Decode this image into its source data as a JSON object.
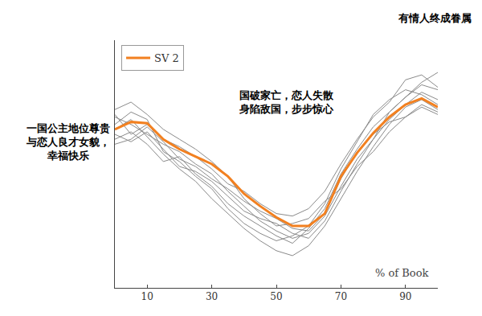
{
  "chart_data": {
    "type": "line",
    "x_label": "% of Book",
    "annotations": {
      "start": [
        "一国公主地位尊贵",
        "与恋人良才女貌，",
        "幸福快乐"
      ],
      "middle": [
        "国破家亡，恋人失散",
        "身陷敌国，步步惊心"
      ],
      "end": [
        "有情人终成眷属"
      ]
    },
    "x": [
      0,
      5,
      10,
      15,
      20,
      25,
      30,
      35,
      40,
      45,
      50,
      55,
      60,
      65,
      70,
      75,
      80,
      85,
      90,
      95,
      100
    ],
    "xlim": [
      0,
      100
    ],
    "xticks": [
      10,
      30,
      50,
      70,
      90
    ],
    "ylim": [
      0,
      10
    ],
    "tick_labels": "x",
    "grid": false,
    "legend": "upper left",
    "series": [
      {
        "color": "#8a8a8a",
        "values": [
          6.9,
          6.6,
          6.2,
          5.8,
          5.5,
          5.0,
          4.6,
          3.9,
          3.3,
          2.7,
          2.3,
          2.0,
          2.2,
          2.9,
          4.1,
          5.2,
          6.0,
          6.8,
          7.4,
          7.9,
          7.6
        ]
      },
      {
        "color": "#8a8a8a",
        "values": [
          6.0,
          6.3,
          5.8,
          5.1,
          5.3,
          4.6,
          4.1,
          3.4,
          2.9,
          2.5,
          2.1,
          1.8,
          2.4,
          3.2,
          4.6,
          5.6,
          6.5,
          7.1,
          7.7,
          8.2,
          8.0
        ]
      },
      {
        "color": "#8a8a8a",
        "values": [
          7.2,
          7.5,
          7.0,
          6.4,
          6.0,
          5.6,
          5.1,
          4.5,
          3.6,
          3.0,
          2.5,
          2.6,
          2.8,
          3.5,
          4.0,
          4.9,
          5.5,
          6.3,
          6.9,
          7.3,
          7.0
        ]
      },
      {
        "color": "#8a8a8a",
        "values": [
          6.4,
          6.8,
          6.1,
          5.4,
          4.8,
          4.3,
          3.6,
          3.0,
          2.4,
          1.9,
          1.5,
          1.3,
          1.7,
          2.5,
          3.6,
          4.7,
          5.7,
          6.6,
          7.3,
          7.6,
          7.2
        ]
      },
      {
        "color": "#8a8a8a",
        "values": [
          5.8,
          6.0,
          6.5,
          5.9,
          5.2,
          4.9,
          4.4,
          4.0,
          3.5,
          3.1,
          2.8,
          2.4,
          2.3,
          3.0,
          4.4,
          5.5,
          6.2,
          6.7,
          6.9,
          7.4,
          7.1
        ]
      },
      {
        "color": "#8a8a8a",
        "values": [
          7.0,
          6.2,
          6.6,
          6.0,
          5.7,
          5.3,
          4.8,
          4.2,
          3.9,
          3.4,
          3.0,
          2.9,
          3.2,
          3.9,
          5.0,
          6.0,
          6.9,
          7.5,
          8.4,
          8.6,
          8.1
        ]
      },
      {
        "color": "#8a8a8a",
        "values": [
          6.6,
          7.1,
          6.8,
          5.5,
          5.1,
          4.5,
          4.0,
          3.2,
          2.6,
          2.2,
          1.9,
          2.1,
          2.5,
          3.4,
          4.8,
          5.9,
          7.0,
          7.6,
          8.0,
          7.8,
          7.4
        ]
      },
      {
        "color": "#8a8a8a",
        "values": [
          6.2,
          5.9,
          6.3,
          5.6,
          4.9,
          4.7,
          4.3,
          3.7,
          3.1,
          2.8,
          2.6,
          2.2,
          2.0,
          2.7,
          3.9,
          5.0,
          6.0,
          7.1,
          7.7,
          8.3,
          8.7
        ]
      },
      {
        "name": "SV 2",
        "color": "#f28020",
        "values": [
          6.4,
          6.7,
          6.65,
          6.0,
          5.6,
          5.3,
          5.0,
          4.5,
          3.8,
          3.3,
          2.85,
          2.5,
          2.5,
          3.0,
          4.5,
          5.45,
          6.25,
          6.9,
          7.4,
          7.65,
          7.3
        ]
      }
    ]
  }
}
